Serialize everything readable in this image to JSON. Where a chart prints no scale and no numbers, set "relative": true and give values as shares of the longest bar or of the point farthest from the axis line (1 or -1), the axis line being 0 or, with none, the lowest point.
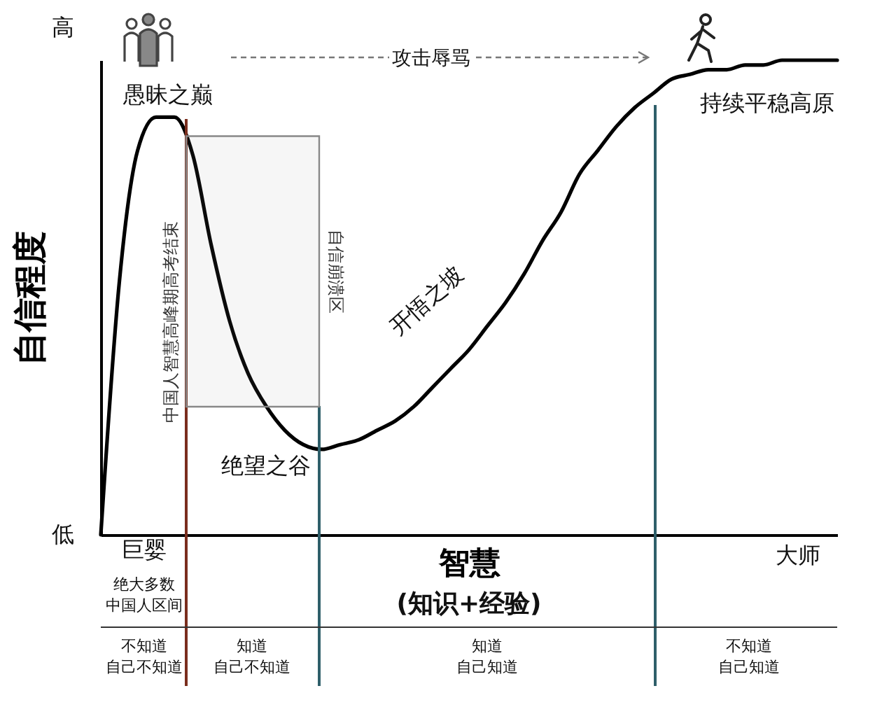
{
  "chart_data": {
    "type": "line",
    "ylabel": "自信程度",
    "xlabel": "智慧",
    "relative": true,
    "categories": [
      null,
      null,
      null,
      null,
      null,
      null,
      null,
      null,
      null,
      null,
      null,
      null,
      null,
      null,
      null,
      null,
      null,
      null,
      null,
      null,
      null,
      null,
      null,
      null,
      null,
      null,
      null,
      null,
      null,
      null,
      null,
      null,
      null,
      null,
      null,
      null,
      null,
      null,
      null,
      null,
      null
    ],
    "series": [
      {
        "color": "#000000",
        "values": [
          0,
          0.53,
          0.81,
          0.88,
          0.88,
          0.8,
          0.61,
          0.45,
          0.34,
          0.27,
          0.22,
          0.19,
          0.18,
          0.19,
          0.2,
          0.22,
          0.24,
          0.27,
          0.31,
          0.35,
          0.39,
          0.44,
          0.49,
          0.55,
          0.62,
          0.68,
          0.76,
          0.81,
          0.86,
          0.9,
          0.93,
          0.96,
          0.97,
          0.98,
          0.98,
          0.99,
          0.99,
          1,
          1,
          1,
          1
        ]
      }
    ],
    "grid": false,
    "ref_lines": [
      {
        "axis": "x",
        "label": "中国人智慧高峰期高考结束",
        "color": "#7a2e1e"
      },
      {
        "axis": "x",
        "color": "#2f5f6a"
      },
      {
        "axis": "x",
        "color": "#2f5f6a"
      }
    ],
    "bands": [
      {
        "axis": "y",
        "from": 0.27,
        "to": 0.84,
        "label": "自信崩溃区",
        "color": "#888888"
      }
    ],
    "annotations": [
      "愚昧之巅",
      "攻击辱骂",
      "持续平稳高原",
      "开悟之坡",
      "绝望之谷",
      "(知识+经验)",
      "绝大多数中国人区间",
      "不知道自己不知道",
      "知道自己不知道",
      "知道自己知道",
      "不知道自己知道",
      "高",
      "低",
      "巨婴",
      "大师"
    ]
  }
}
